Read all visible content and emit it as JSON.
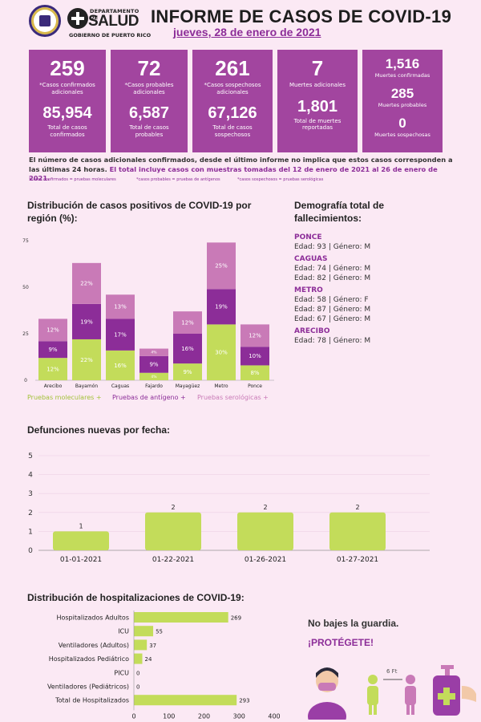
{
  "header": {
    "dept_top": "DEPARTAMENTO DE",
    "dept_main": "SALUD",
    "gov": "GOBIERNO DE PUERTO RICO",
    "title": "INFORME DE CASOS DE COVID-19",
    "date": "jueves, 28 de enero de 2021"
  },
  "boxes": [
    {
      "n1": "259",
      "l1": "*Casos confirmados adicionales",
      "n2": "85,954",
      "l2": "Total de casos confirmados"
    },
    {
      "n1": "72",
      "l1": "*Casos probables adicionales",
      "n2": "6,587",
      "l2": "Total de casos probables"
    },
    {
      "n1": "261",
      "l1": "*Casos sospechosos adicionales",
      "n2": "67,126",
      "l2": "Total de casos sospechosos"
    },
    {
      "n1": "7",
      "l1": "Muertes adicionales",
      "n2": "1,801",
      "l2": "Total de muertes reportadas"
    }
  ],
  "deaths_box": [
    {
      "n": "1,516",
      "l": "Muertes confirmadas"
    },
    {
      "n": "285",
      "l": "Muertes probables"
    },
    {
      "n": "0",
      "l": "Muertes sospechosas"
    }
  ],
  "note": {
    "text": "El número de casos adicionales confirmados, desde el último informe no implica que estos casos corresponden a las últimas 24 horas.",
    "highlight": "El total incluye casos con muestras tomadas del 12 de enero de 2021 al 26 de enero de 2021.",
    "legend": [
      "*casos confirmados = pruebas moleculares",
      "*casos probables = pruebas de antígenos",
      "*casos sospechosos = pruebas serológicas"
    ]
  },
  "colors": {
    "accent": "#a2459f",
    "green": "#c3dc5a",
    "purple": "#8c2d98",
    "pink": "#c97ab7",
    "bg": "#fbe9f4"
  },
  "region_chart": {
    "title": "Distribución de casos positivos de COVID-19 por región (%):",
    "legend": [
      "Pruebas moleculares +",
      "Pruebas de antígeno +",
      "Pruebas serológicas +"
    ]
  },
  "deaths_chart": {
    "title": "Defunciones nuevas por fecha:"
  },
  "hosp_chart": {
    "title": "Distribución de hospitalizaciones de COVID-19:"
  },
  "demography": {
    "title": "Demografía total de fallecimientos:",
    "groups": [
      {
        "city": "PONCE",
        "lines": [
          "Edad: 93 | Género: M"
        ]
      },
      {
        "city": "CAGUAS",
        "lines": [
          "Edad: 74 | Género: M",
          "Edad: 82 | Género: M"
        ]
      },
      {
        "city": "METRO",
        "lines": [
          "Edad: 58 | Género: F",
          "Edad: 87 | Género: M",
          "Edad: 67 | Género: M"
        ]
      },
      {
        "city": "ARECIBO",
        "lines": [
          "Edad: 78 | Género: M"
        ]
      }
    ]
  },
  "slogan": {
    "line1": "No bajes la guardia.",
    "line2": "¡PROTÉGETE!",
    "distance": "6 Ft"
  },
  "chart_data": [
    {
      "type": "bar",
      "stacked": true,
      "categories": [
        "Arecibo",
        "Bayamón",
        "Caguas",
        "Fajardo",
        "Mayagüez",
        "Metro",
        "Ponce"
      ],
      "series": [
        {
          "name": "Pruebas moleculares +",
          "values": [
            12,
            22,
            16,
            4,
            9,
            30,
            8
          ],
          "labels": [
            "12%",
            "22%",
            "16%",
            "4%",
            "9%",
            "30%",
            "8%"
          ]
        },
        {
          "name": "Pruebas de antígeno +",
          "values": [
            9,
            19,
            17,
            9,
            16,
            19,
            10
          ],
          "labels": [
            "9%",
            "19%",
            "17%",
            "9%",
            "16%",
            "19%",
            "10%"
          ]
        },
        {
          "name": "Pruebas serológicas +",
          "values": [
            12,
            22,
            13,
            4,
            12,
            25,
            12
          ],
          "labels": [
            "12%",
            "22%",
            "13%",
            "4%",
            "12%",
            "25%",
            "12%"
          ]
        }
      ],
      "ylim": [
        0,
        75
      ],
      "yticks": [
        "0",
        "25",
        "50",
        "75"
      ]
    },
    {
      "type": "bar",
      "categories": [
        "01-01-2021",
        "01-22-2021",
        "01-26-2021",
        "01-27-2021"
      ],
      "values": [
        1,
        2,
        2,
        2
      ],
      "labels": [
        "1",
        "2",
        "2",
        "2"
      ],
      "ylim": [
        0,
        5
      ],
      "yticks": [
        "0",
        "1",
        "2",
        "3",
        "4",
        "5"
      ]
    },
    {
      "type": "bar",
      "orientation": "horizontal",
      "categories": [
        "Hospitalizados Adultos",
        "ICU",
        "Ventiladores (Adultos)",
        "Hospitalizados Pediátrico",
        "PICU",
        "Ventiladores (Pediátricos)",
        "Total de Hospitalizados"
      ],
      "values": [
        269,
        55,
        37,
        24,
        0,
        0,
        293
      ],
      "labels": [
        "269",
        "55",
        "37",
        "24",
        "0",
        "0",
        "293"
      ],
      "xlim": [
        0,
        400
      ],
      "xticks": [
        "0",
        "100",
        "200",
        "300",
        "400"
      ]
    }
  ]
}
